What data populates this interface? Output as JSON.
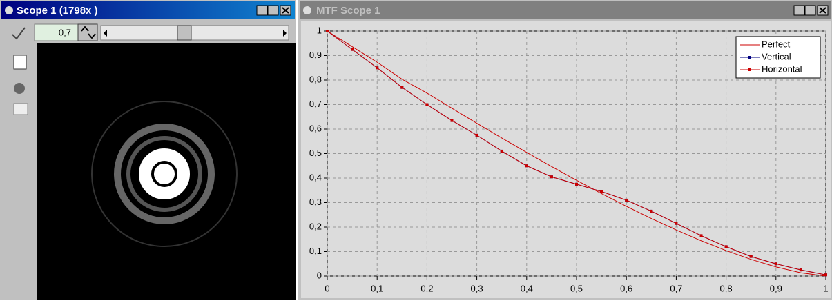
{
  "scope_window": {
    "title": "Scope 1 (1798x )",
    "zoom_value": "0,7"
  },
  "mtf_window": {
    "title": "MTF Scope 1"
  },
  "chart_data": {
    "type": "line",
    "x": [
      0,
      0.05,
      0.1,
      0.15,
      0.2,
      0.25,
      0.3,
      0.35,
      0.4,
      0.45,
      0.5,
      0.55,
      0.6,
      0.65,
      0.7,
      0.75,
      0.8,
      0.85,
      0.9,
      0.95,
      1
    ],
    "series": [
      {
        "name": "Perfect",
        "color": "#cc0000",
        "markers": false,
        "values": [
          1,
          0.9364,
          0.8729,
          0.8033,
          0.7471,
          0.685,
          0.6238,
          0.5636,
          0.5046,
          0.447,
          0.391,
          0.3368,
          0.2848,
          0.2351,
          0.1881,
          0.1443,
          0.1041,
          0.0681,
          0.0374,
          0.0133,
          0
        ]
      },
      {
        "name": "Vertical",
        "color": "#000080",
        "markers": true,
        "values": [
          1,
          0.925,
          0.85,
          0.77,
          0.7,
          0.635,
          0.575,
          0.51,
          0.45,
          0.405,
          0.375,
          0.345,
          0.31,
          0.265,
          0.215,
          0.165,
          0.12,
          0.08,
          0.05,
          0.025,
          0.005
        ]
      },
      {
        "name": "Horizontal",
        "color": "#cc0000",
        "markers": true,
        "values": [
          1,
          0.925,
          0.85,
          0.77,
          0.7,
          0.635,
          0.575,
          0.51,
          0.45,
          0.405,
          0.375,
          0.345,
          0.31,
          0.265,
          0.215,
          0.165,
          0.12,
          0.08,
          0.05,
          0.025,
          0.005
        ]
      }
    ],
    "xlim": [
      0,
      1
    ],
    "xticks": [
      0,
      {
        "value": 0.1,
        "label": "0,1"
      },
      {
        "value": 0.2,
        "label": "0,2"
      },
      {
        "value": 0.3,
        "label": "0,3"
      },
      {
        "value": 0.4,
        "label": "0,4"
      },
      {
        "value": 0.5,
        "label": "0,5"
      },
      {
        "value": 0.6,
        "label": "0,6"
      },
      {
        "value": 0.7,
        "label": "0,7"
      },
      {
        "value": 0.8,
        "label": "0,8"
      },
      {
        "value": 0.9,
        "label": "0,9"
      },
      1
    ],
    "ylim": [
      0,
      1
    ],
    "yticks": [
      0,
      {
        "value": 0.1,
        "label": "0,1"
      },
      {
        "value": 0.2,
        "label": "0,2"
      },
      {
        "value": 0.3,
        "label": "0,3"
      },
      {
        "value": 0.4,
        "label": "0,4"
      },
      {
        "value": 0.5,
        "label": "0,5"
      },
      {
        "value": 0.6,
        "label": "0,6"
      },
      {
        "value": 0.7,
        "label": "0,7"
      },
      {
        "value": 0.8,
        "label": "0,8"
      },
      {
        "value": 0.9,
        "label": "0,9"
      },
      1
    ],
    "grid": true,
    "legend": "upper right"
  }
}
